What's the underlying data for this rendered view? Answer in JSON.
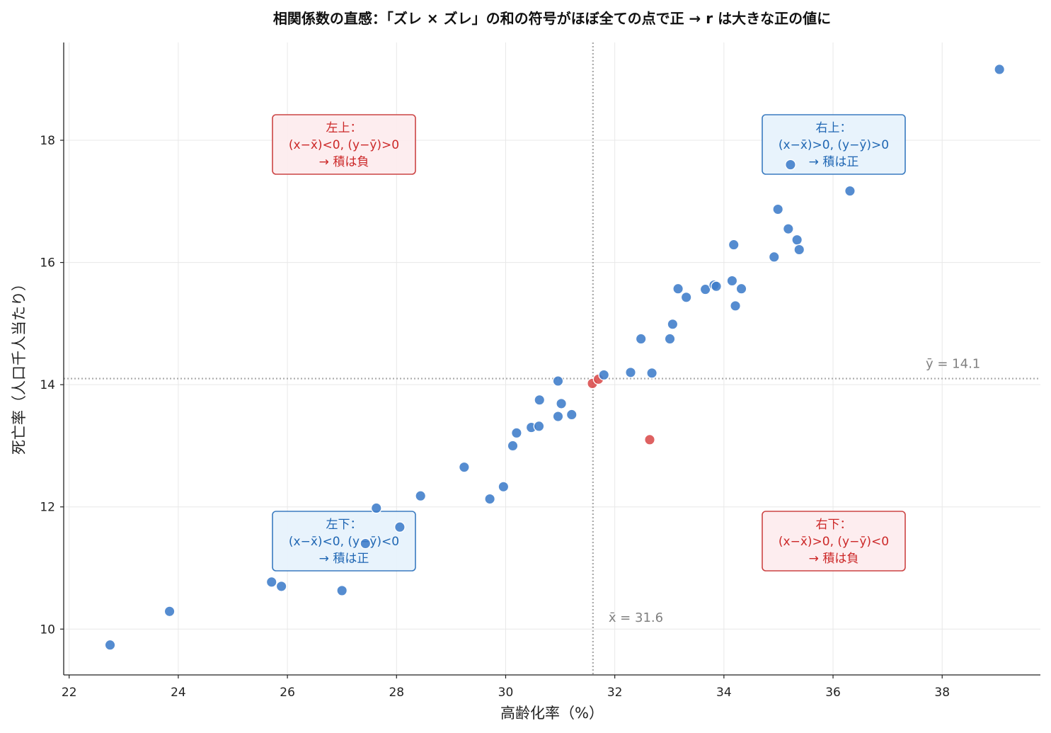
{
  "chart_data": {
    "type": "scatter",
    "title": "相関係数の直感：「ズレ × ズレ」の和の符号がほぼ全ての点で正 → r は大きな正の値に",
    "xlabel": "高齢化率（%）",
    "ylabel": "死亡率（人口千人当たり）",
    "xlim": [
      21.9,
      39.8
    ],
    "ylim": [
      9.25,
      19.6
    ],
    "xticks": [
      22,
      24,
      26,
      28,
      30,
      32,
      34,
      36,
      38
    ],
    "yticks": [
      10,
      12,
      14,
      16,
      18
    ],
    "grid": true,
    "x_mean": 31.6,
    "y_mean": 14.1,
    "x_mean_label": "x̄ = 31.6",
    "y_mean_label": "ȳ = 14.1",
    "colors": {
      "positive": "#3d7cc9",
      "negative": "#d94b4b",
      "mean_line": "#aaaaaa"
    },
    "points": [
      {
        "x": 22.75,
        "y": 9.74,
        "sign": "positive"
      },
      {
        "x": 23.84,
        "y": 10.29,
        "sign": "positive"
      },
      {
        "x": 25.71,
        "y": 10.77,
        "sign": "positive"
      },
      {
        "x": 25.89,
        "y": 10.7,
        "sign": "positive"
      },
      {
        "x": 27.0,
        "y": 10.63,
        "sign": "positive"
      },
      {
        "x": 27.43,
        "y": 11.4,
        "sign": "positive"
      },
      {
        "x": 27.63,
        "y": 11.98,
        "sign": "positive"
      },
      {
        "x": 28.06,
        "y": 11.67,
        "sign": "positive"
      },
      {
        "x": 28.44,
        "y": 12.18,
        "sign": "positive"
      },
      {
        "x": 29.24,
        "y": 12.65,
        "sign": "positive"
      },
      {
        "x": 29.71,
        "y": 12.13,
        "sign": "positive"
      },
      {
        "x": 29.96,
        "y": 12.33,
        "sign": "positive"
      },
      {
        "x": 30.13,
        "y": 13.0,
        "sign": "positive"
      },
      {
        "x": 30.2,
        "y": 13.21,
        "sign": "positive"
      },
      {
        "x": 30.47,
        "y": 13.3,
        "sign": "positive"
      },
      {
        "x": 30.61,
        "y": 13.32,
        "sign": "positive"
      },
      {
        "x": 30.62,
        "y": 13.75,
        "sign": "positive"
      },
      {
        "x": 30.96,
        "y": 13.48,
        "sign": "positive"
      },
      {
        "x": 30.96,
        "y": 14.06,
        "sign": "positive"
      },
      {
        "x": 31.02,
        "y": 13.69,
        "sign": "positive"
      },
      {
        "x": 31.21,
        "y": 13.51,
        "sign": "positive"
      },
      {
        "x": 31.59,
        "y": 14.02,
        "sign": "negative"
      },
      {
        "x": 31.7,
        "y": 14.09,
        "sign": "negative"
      },
      {
        "x": 31.8,
        "y": 14.16,
        "sign": "positive"
      },
      {
        "x": 32.29,
        "y": 14.2,
        "sign": "positive"
      },
      {
        "x": 32.64,
        "y": 13.1,
        "sign": "negative"
      },
      {
        "x": 32.68,
        "y": 14.19,
        "sign": "positive"
      },
      {
        "x": 32.48,
        "y": 14.75,
        "sign": "positive"
      },
      {
        "x": 33.01,
        "y": 14.75,
        "sign": "positive"
      },
      {
        "x": 33.06,
        "y": 14.99,
        "sign": "positive"
      },
      {
        "x": 33.16,
        "y": 15.57,
        "sign": "positive"
      },
      {
        "x": 33.31,
        "y": 15.43,
        "sign": "positive"
      },
      {
        "x": 33.66,
        "y": 15.56,
        "sign": "positive"
      },
      {
        "x": 33.82,
        "y": 15.63,
        "sign": "positive"
      },
      {
        "x": 33.86,
        "y": 15.61,
        "sign": "positive"
      },
      {
        "x": 34.15,
        "y": 15.7,
        "sign": "positive"
      },
      {
        "x": 34.21,
        "y": 15.29,
        "sign": "positive"
      },
      {
        "x": 34.32,
        "y": 15.57,
        "sign": "positive"
      },
      {
        "x": 34.18,
        "y": 16.29,
        "sign": "positive"
      },
      {
        "x": 34.92,
        "y": 16.09,
        "sign": "positive"
      },
      {
        "x": 34.99,
        "y": 16.87,
        "sign": "positive"
      },
      {
        "x": 35.18,
        "y": 16.55,
        "sign": "positive"
      },
      {
        "x": 35.34,
        "y": 16.37,
        "sign": "positive"
      },
      {
        "x": 35.38,
        "y": 16.21,
        "sign": "positive"
      },
      {
        "x": 35.22,
        "y": 17.6,
        "sign": "positive"
      },
      {
        "x": 36.31,
        "y": 17.17,
        "sign": "positive"
      },
      {
        "x": 39.05,
        "y": 19.16,
        "sign": "positive"
      }
    ],
    "annotations": [
      {
        "id": "top-left",
        "style": "negative",
        "lines": [
          "左上：",
          "(x−x̄)<0, (y−ȳ)>0",
          "→ 積は負"
        ]
      },
      {
        "id": "top-right",
        "style": "positive",
        "lines": [
          "右上：",
          "(x−x̄)>0, (y−ȳ)>0",
          "→ 積は正"
        ]
      },
      {
        "id": "bottom-left",
        "style": "positive",
        "lines": [
          "左下：",
          "(x−x̄)<0, (y−ȳ)<0",
          "→ 積は正"
        ]
      },
      {
        "id": "bottom-right",
        "style": "negative",
        "lines": [
          "右下：",
          "(x−x̄)>0, (y−ȳ)<0",
          "→ 積は負"
        ]
      }
    ]
  }
}
